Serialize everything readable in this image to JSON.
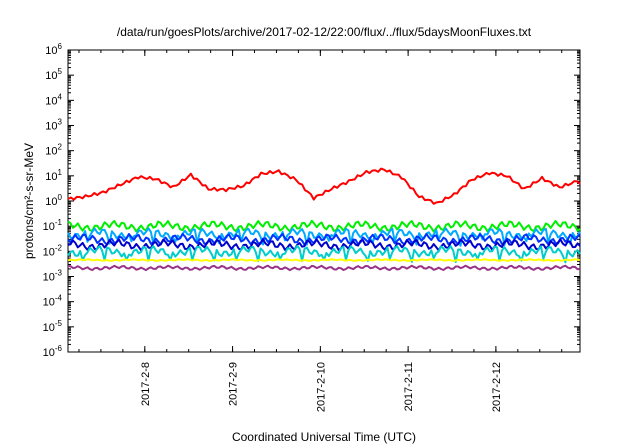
{
  "chart_data": {
    "type": "line",
    "title": "/data/run/goesPlots/archive/2017-02-12/22:00/flux/../flux/5daysMoonFluxes.txt",
    "xlabel": "Coordinated Universal Time (UTC)",
    "ylabel": "protons/cm²-s-sr-MeV",
    "yscale": "log",
    "ylim": [
      1e-06,
      1000000.0
    ],
    "xlim": [
      "2017-02-07 03:00",
      "2017-02-12 23:00"
    ],
    "x_ticks": [
      "2017-2-8",
      "2017-2-9",
      "2017-2-10",
      "2017-2-11",
      "2017-2-12"
    ],
    "y_ticks": [
      {
        "base": "10",
        "exp": "6"
      },
      {
        "base": "10",
        "exp": "5"
      },
      {
        "base": "10",
        "exp": "4"
      },
      {
        "base": "10",
        "exp": "3"
      },
      {
        "base": "10",
        "exp": "2"
      },
      {
        "base": "10",
        "exp": "1"
      },
      {
        "base": "10",
        "exp": "0"
      },
      {
        "base": "10",
        "exp": "-1"
      },
      {
        "base": "10",
        "exp": "-2"
      },
      {
        "base": "10",
        "exp": "-3"
      },
      {
        "base": "10",
        "exp": "-4"
      },
      {
        "base": "10",
        "exp": "-5"
      },
      {
        "base": "10",
        "exp": "-6"
      }
    ],
    "grid": false,
    "legend": "none",
    "series": [
      {
        "color": "#ff0000",
        "x_days": [
          0,
          0.2,
          0.4,
          0.6,
          0.8,
          1.0,
          1.2,
          1.4,
          1.6,
          1.8,
          2.0,
          2.2,
          2.4,
          2.6,
          2.8,
          3.0,
          3.2,
          3.4,
          3.6,
          3.8,
          4.0,
          4.2,
          4.4,
          4.6,
          4.8,
          5.0,
          5.2,
          5.4,
          5.6,
          5.8
        ],
        "values": [
          1.2,
          1.5,
          2.2,
          4.5,
          9,
          7.5,
          3.5,
          11,
          3,
          2.8,
          4,
          12,
          15,
          7,
          1.3,
          3,
          6,
          14,
          18,
          9,
          1.5,
          0.8,
          1.8,
          7,
          13,
          10,
          3,
          8,
          3.5,
          6
        ]
      },
      {
        "color": "#00ee00",
        "level": 0.1
      },
      {
        "color": "#00aaff",
        "level": 0.05
      },
      {
        "color": "#0033ff",
        "level": 0.03
      },
      {
        "color": "#0000cc",
        "level": 0.018
      },
      {
        "color": "#00cccc",
        "level": 0.01
      },
      {
        "color": "#ffff00",
        "level": 0.0045
      },
      {
        "color": "#993388",
        "level": 0.0022
      }
    ]
  }
}
